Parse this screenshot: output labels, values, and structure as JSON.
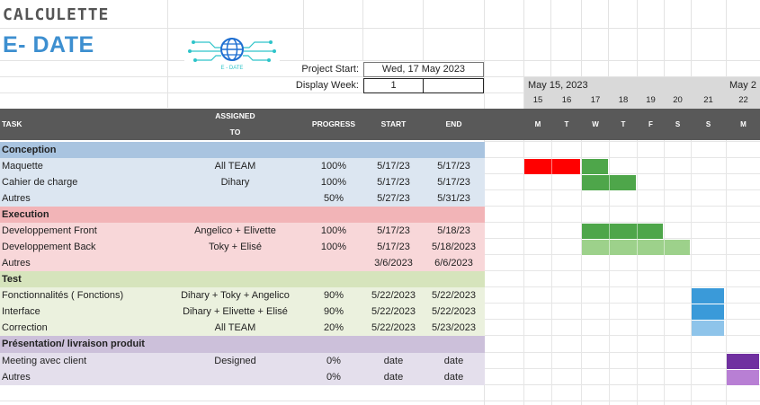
{
  "brand": {
    "line1": "CALCULETTE",
    "line2": "E- DATE",
    "logo_text": "E - DATE"
  },
  "project": {
    "start_label": "Project Start:",
    "start_value": "Wed, 17 May 2023",
    "week_label": "Display Week:",
    "week_value": "1"
  },
  "timeline": {
    "months": [
      "May 15, 2023",
      "May 2"
    ],
    "days": [
      "15",
      "16",
      "17",
      "18",
      "19",
      "20",
      "21",
      "22"
    ],
    "weekdays": [
      "M",
      "T",
      "W",
      "T",
      "F",
      "S",
      "S",
      "M"
    ]
  },
  "headers": {
    "task": "TASK",
    "assigned_line1": "ASSIGNED",
    "assigned_line2": "TO",
    "progress": "PROGRESS",
    "start": "START",
    "end": "END"
  },
  "colors": {
    "header_bg": "#595959",
    "conception_phase": "#a9c4e0",
    "conception_row": "#dce6f1",
    "execution_phase": "#f2b4b7",
    "execution_row": "#f8d7d9",
    "test_phase": "#d6e4bc",
    "test_row": "#ebf1de",
    "presentation_phase": "#ccc0da",
    "presentation_row": "#e4dfec",
    "bar_red": "#ff0000",
    "bar_green": "#4ea64a",
    "bar_lightgreen": "#9dd18b",
    "bar_blue": "#3a9ad9",
    "bar_lightblue": "#8ec4ea",
    "bar_purple": "#7030a0",
    "bar_lightpurple": "#b87fd4"
  },
  "rows": [
    {
      "type": "phase",
      "group": "conception",
      "task": "Conception"
    },
    {
      "type": "task",
      "group": "conception",
      "task": "Maquette",
      "assigned": "All TEAM",
      "progress": "100%",
      "start": "5/17/23",
      "end": "5/17/23"
    },
    {
      "type": "task",
      "group": "conception",
      "task": "Cahier de charge",
      "assigned": "Dihary",
      "progress": "100%",
      "start": "5/17/23",
      "end": "5/17/23"
    },
    {
      "type": "task",
      "group": "conception",
      "task": "Autres",
      "assigned": "",
      "progress": "50%",
      "start": "5/27/23",
      "end": "5/31/23"
    },
    {
      "type": "phase",
      "group": "execution",
      "task": "Execution"
    },
    {
      "type": "task",
      "group": "execution",
      "task": "Developpement Front",
      "assigned": "Angelico + Elivette",
      "progress": "100%",
      "start": "5/17/23",
      "end": "5/18/23"
    },
    {
      "type": "task",
      "group": "execution",
      "task": "Developpement Back",
      "assigned": "Toky + Elisé",
      "progress": "100%",
      "start": "5/17/23",
      "end": "5/18/2023"
    },
    {
      "type": "task",
      "group": "execution",
      "task": "Autres",
      "assigned": "",
      "progress": "",
      "start": "3/6/2023",
      "end": "6/6/2023"
    },
    {
      "type": "phase",
      "group": "test",
      "task": "Test"
    },
    {
      "type": "task",
      "group": "test",
      "task": "Fonctionnalités ( Fonctions)",
      "assigned": "Dihary + Toky + Angelico",
      "progress": "90%",
      "start": "5/22/2023",
      "end": "5/22/2023"
    },
    {
      "type": "task",
      "group": "test",
      "task": "Interface",
      "assigned": "Dihary + Elivette + Elisé",
      "progress": "90%",
      "start": "5/22/2023",
      "end": "5/22/2023"
    },
    {
      "type": "task",
      "group": "test",
      "task": "Correction",
      "assigned": "All TEAM",
      "progress": "20%",
      "start": "5/22/2023",
      "end": "5/23/2023"
    },
    {
      "type": "phase",
      "group": "presentation",
      "task": "Présentation/ livraison produit"
    },
    {
      "type": "task",
      "group": "presentation",
      "task": "Meeting avec client",
      "assigned": "Designed",
      "progress": "0%",
      "start": "date",
      "end": "date"
    },
    {
      "type": "task",
      "group": "presentation",
      "task": "Autres",
      "assigned": "",
      "progress": "0%",
      "start": "date",
      "end": "date"
    }
  ],
  "gantt_bars": [
    {
      "row": 1,
      "from_day": 0,
      "span": 2,
      "color": "#ff0000"
    },
    {
      "row": 1,
      "from_day": 2,
      "span": 1,
      "color": "#4ea64a"
    },
    {
      "row": 2,
      "from_day": 2,
      "span": 2,
      "color": "#4ea64a"
    },
    {
      "row": 5,
      "from_day": 2,
      "span": 3,
      "color": "#4ea64a"
    },
    {
      "row": 6,
      "from_day": 2,
      "span": 4,
      "color": "#9dd18b"
    },
    {
      "row": 9,
      "from_day": 6,
      "span": 1,
      "color": "#3a9ad9"
    },
    {
      "row": 10,
      "from_day": 6,
      "span": 1,
      "color": "#3a9ad9"
    },
    {
      "row": 11,
      "from_day": 6,
      "span": 1,
      "color": "#8ec4ea"
    },
    {
      "row": 13,
      "from_day": 7,
      "span": 1,
      "color": "#7030a0"
    },
    {
      "row": 14,
      "from_day": 7,
      "span": 1,
      "color": "#b87fd4"
    }
  ]
}
